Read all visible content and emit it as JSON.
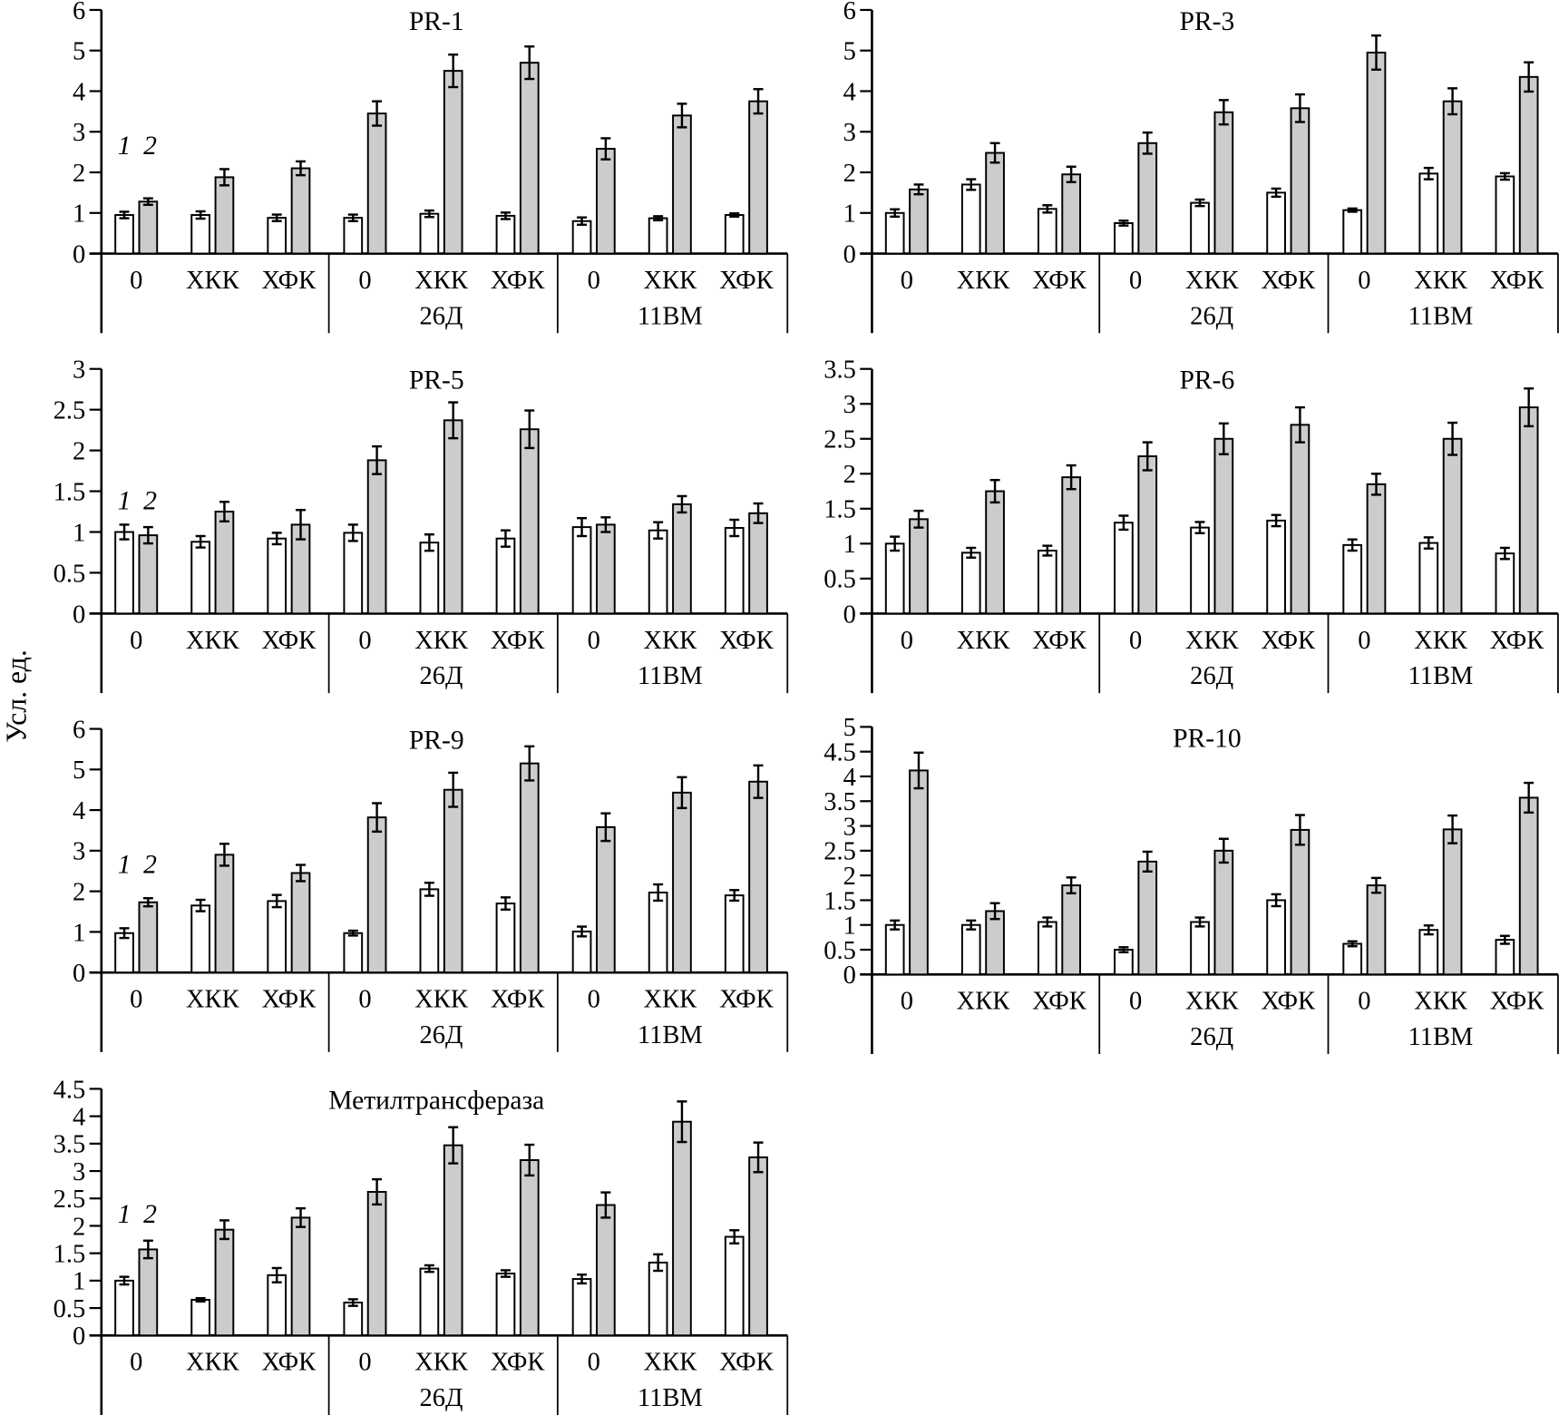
{
  "chart_data": {
    "type": "bar",
    "ylabel": "Усл. ед.",
    "legend": {
      "series_labels": [
        "1",
        "2"
      ],
      "series_fills": [
        "#ffffff",
        "#cccccc"
      ]
    },
    "categories": [
      "0",
      "ХКК",
      "ХФК",
      "0",
      "ХКК",
      "ХФК",
      "0",
      "ХКК",
      "ХФК"
    ],
    "groups": [
      {
        "label": "",
        "categories": [
          "0",
          "ХКК",
          "ХФК"
        ]
      },
      {
        "label": "26Д",
        "categories": [
          "0",
          "ХКК",
          "ХФК"
        ]
      },
      {
        "label": "11ВМ",
        "categories": [
          "0",
          "ХКК",
          "ХФК"
        ]
      }
    ],
    "panels": [
      {
        "title": "PR-1",
        "ylim": [
          0,
          6
        ],
        "yticks": [
          "0",
          "1",
          "2",
          "3",
          "4",
          "5",
          "6"
        ],
        "show_legend": true,
        "series": [
          {
            "name": "1",
            "values": [
              0.95,
              0.95,
              0.88,
              0.88,
              0.98,
              0.93,
              0.8,
              0.87,
              0.95
            ],
            "errors": [
              0.08,
              0.09,
              0.08,
              0.08,
              0.08,
              0.08,
              0.09,
              0.05,
              0.04
            ]
          },
          {
            "name": "2",
            "values": [
              1.28,
              1.88,
              2.1,
              3.45,
              4.5,
              4.7,
              2.58,
              3.4,
              3.75
            ],
            "errors": [
              0.08,
              0.2,
              0.17,
              0.3,
              0.4,
              0.4,
              0.26,
              0.29,
              0.3
            ]
          }
        ]
      },
      {
        "title": "PR-3",
        "ylim": [
          0,
          6
        ],
        "yticks": [
          "0",
          "1",
          "2",
          "3",
          "4",
          "5",
          "6"
        ],
        "show_legend": false,
        "series": [
          {
            "name": "1",
            "values": [
              1.0,
              1.7,
              1.1,
              0.75,
              1.25,
              1.5,
              1.07,
              1.97,
              1.9
            ],
            "errors": [
              0.09,
              0.13,
              0.09,
              0.06,
              0.08,
              0.1,
              0.04,
              0.14,
              0.08
            ]
          },
          {
            "name": "2",
            "values": [
              1.58,
              2.48,
              1.95,
              2.72,
              3.48,
              3.58,
              4.95,
              3.75,
              4.35
            ],
            "errors": [
              0.12,
              0.24,
              0.19,
              0.26,
              0.3,
              0.34,
              0.42,
              0.32,
              0.36
            ]
          }
        ]
      },
      {
        "title": "PR-5",
        "ylim": [
          0,
          3
        ],
        "yticks": [
          "0",
          "0.5",
          "1",
          "1.5",
          "2",
          "2.5",
          "3"
        ],
        "show_legend": true,
        "series": [
          {
            "name": "1",
            "values": [
              1.0,
              0.88,
              0.92,
              0.99,
              0.87,
              0.92,
              1.06,
              1.02,
              1.05
            ],
            "errors": [
              0.09,
              0.07,
              0.07,
              0.1,
              0.1,
              0.1,
              0.11,
              0.1,
              0.1
            ]
          },
          {
            "name": "2",
            "values": [
              0.96,
              1.25,
              1.09,
              1.88,
              2.37,
              2.26,
              1.09,
              1.34,
              1.23
            ],
            "errors": [
              0.1,
              0.12,
              0.18,
              0.17,
              0.22,
              0.23,
              0.09,
              0.1,
              0.12
            ]
          }
        ]
      },
      {
        "title": "PR-6",
        "ylim": [
          0,
          3.5
        ],
        "yticks": [
          "0",
          "0.5",
          "1",
          "1.5",
          "2",
          "2.5",
          "3",
          "3.5"
        ],
        "show_legend": false,
        "series": [
          {
            "name": "1",
            "values": [
              1.0,
              0.87,
              0.9,
              1.3,
              1.23,
              1.33,
              0.98,
              1.01,
              0.86
            ],
            "errors": [
              0.1,
              0.07,
              0.07,
              0.1,
              0.08,
              0.08,
              0.08,
              0.08,
              0.08
            ]
          },
          {
            "name": "2",
            "values": [
              1.35,
              1.75,
              1.95,
              2.25,
              2.5,
              2.7,
              1.85,
              2.5,
              2.95
            ],
            "errors": [
              0.12,
              0.16,
              0.17,
              0.2,
              0.22,
              0.25,
              0.15,
              0.23,
              0.27
            ]
          }
        ]
      },
      {
        "title": "PR-9",
        "ylim": [
          0,
          6
        ],
        "yticks": [
          "0",
          "1",
          "2",
          "3",
          "4",
          "5",
          "6"
        ],
        "show_legend": true,
        "series": [
          {
            "name": "1",
            "values": [
              0.97,
              1.65,
              1.76,
              0.97,
              2.05,
              1.7,
              1.01,
              1.97,
              1.9
            ],
            "errors": [
              0.12,
              0.14,
              0.15,
              0.06,
              0.16,
              0.15,
              0.12,
              0.2,
              0.13
            ]
          },
          {
            "name": "2",
            "values": [
              1.73,
              2.9,
              2.45,
              3.82,
              4.5,
              5.15,
              3.58,
              4.43,
              4.7
            ],
            "errors": [
              0.1,
              0.27,
              0.2,
              0.35,
              0.42,
              0.42,
              0.34,
              0.38,
              0.4
            ]
          }
        ]
      },
      {
        "title": "PR-10",
        "ylim": [
          0,
          5
        ],
        "yticks": [
          "0",
          "0.5",
          "1",
          "1.5",
          "2",
          "2.5",
          "3",
          "3.5",
          "4",
          "4.5",
          "5"
        ],
        "show_legend": false,
        "series": [
          {
            "name": "1",
            "values": [
              1.0,
              1.0,
              1.06,
              0.5,
              1.06,
              1.5,
              0.62,
              0.9,
              0.7
            ],
            "errors": [
              0.09,
              0.09,
              0.09,
              0.05,
              0.09,
              0.12,
              0.05,
              0.09,
              0.08
            ]
          },
          {
            "name": "2",
            "values": [
              4.12,
              1.28,
              1.8,
              2.28,
              2.5,
              2.92,
              1.8,
              2.93,
              3.57
            ],
            "errors": [
              0.36,
              0.16,
              0.16,
              0.2,
              0.24,
              0.3,
              0.15,
              0.28,
              0.3
            ]
          }
        ]
      },
      {
        "title": "Метилтрансфераза",
        "ylim": [
          0,
          4.5
        ],
        "yticks": [
          "0",
          "0.5",
          "1",
          "1.5",
          "2",
          "2.5",
          "3",
          "3.5",
          "4",
          "4.5"
        ],
        "show_legend": true,
        "series": [
          {
            "name": "1",
            "values": [
              1.0,
              0.65,
              1.1,
              0.6,
              1.22,
              1.13,
              1.03,
              1.33,
              1.8
            ],
            "errors": [
              0.07,
              0.03,
              0.13,
              0.06,
              0.06,
              0.06,
              0.08,
              0.15,
              0.12
            ]
          },
          {
            "name": "2",
            "values": [
              1.57,
              1.93,
              2.15,
              2.62,
              3.47,
              3.2,
              2.38,
              3.9,
              3.25
            ],
            "errors": [
              0.16,
              0.17,
              0.17,
              0.23,
              0.33,
              0.28,
              0.23,
              0.37,
              0.27
            ]
          }
        ]
      }
    ]
  }
}
